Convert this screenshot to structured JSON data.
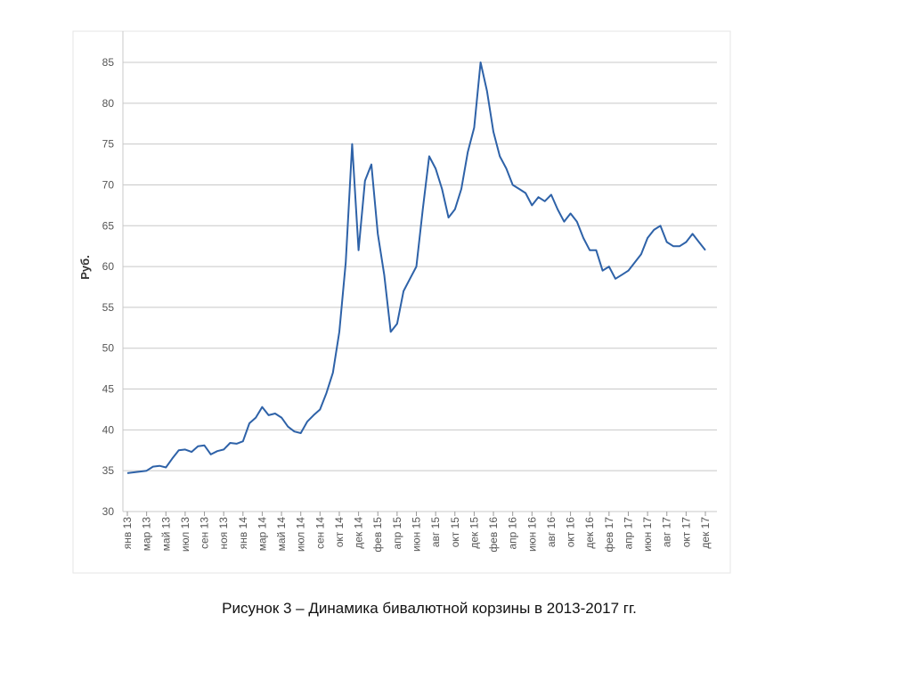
{
  "chart_data": {
    "type": "line",
    "caption": "Рисунок 3 – Динамика бивалютной корзины в 2013-2017 гг.",
    "y_label": "Руб.",
    "categories": [
      "янв 13",
      null,
      null,
      "мар 13",
      null,
      null,
      "май 13",
      null,
      null,
      "июл 13",
      null,
      null,
      "сен 13",
      null,
      null,
      "ноя 13",
      null,
      null,
      "янв 14",
      null,
      null,
      "мар 14",
      null,
      null,
      "май 14",
      null,
      null,
      "июл 14",
      null,
      null,
      "сен 14",
      null,
      null,
      "окт 14",
      null,
      null,
      "дек 14",
      null,
      null,
      "фев 15",
      null,
      null,
      "апр 15",
      null,
      null,
      "июн 15",
      null,
      null,
      "авг 15",
      null,
      null,
      "окт 15",
      null,
      null,
      "дек 15",
      null,
      null,
      "фев 16",
      null,
      null,
      "апр 16",
      null,
      null,
      "июн 16",
      null,
      null,
      "авг 16",
      null,
      null,
      "окт 16",
      null,
      null,
      "дек 16",
      null,
      null,
      "фев 17",
      null,
      null,
      "апр 17",
      null,
      null,
      "июн 17",
      null,
      null,
      "авг 17",
      null,
      null,
      "окт 17",
      null,
      null,
      "дек 17"
    ],
    "values": [
      34.7,
      34.8,
      34.9,
      35.0,
      35.5,
      35.6,
      35.4,
      36.5,
      37.5,
      37.6,
      37.3,
      38.0,
      38.1,
      37.0,
      37.4,
      37.6,
      38.4,
      38.3,
      38.6,
      40.8,
      41.5,
      42.8,
      41.8,
      42.0,
      41.5,
      40.4,
      39.8,
      39.6,
      41.0,
      41.8,
      42.5,
      44.5,
      47.0,
      52.0,
      60.5,
      75.0,
      62.0,
      70.5,
      72.5,
      64.0,
      59.0,
      52.0,
      53.0,
      57.0,
      58.5,
      60.0,
      67.0,
      73.5,
      72.0,
      69.5,
      66.0,
      67.0,
      69.5,
      74.0,
      77.0,
      85.0,
      81.5,
      76.5,
      73.5,
      72.0,
      70.0,
      69.5,
      69.0,
      67.5,
      68.5,
      68.0,
      68.8,
      67.0,
      65.5,
      66.5,
      65.5,
      63.5,
      62.0,
      62.0,
      59.5,
      60.0,
      58.5,
      59.0,
      59.5,
      60.5,
      61.5,
      63.5,
      64.5,
      65.0,
      63.0,
      62.5,
      62.5,
      63.0,
      64.0,
      63.0,
      62.0
    ],
    "color": "#2e62a8",
    "ylim": [
      30,
      85
    ],
    "yticks": [
      30,
      35,
      40,
      45,
      50,
      55,
      60,
      65,
      70,
      75,
      80,
      85
    ],
    "grid": true
  }
}
